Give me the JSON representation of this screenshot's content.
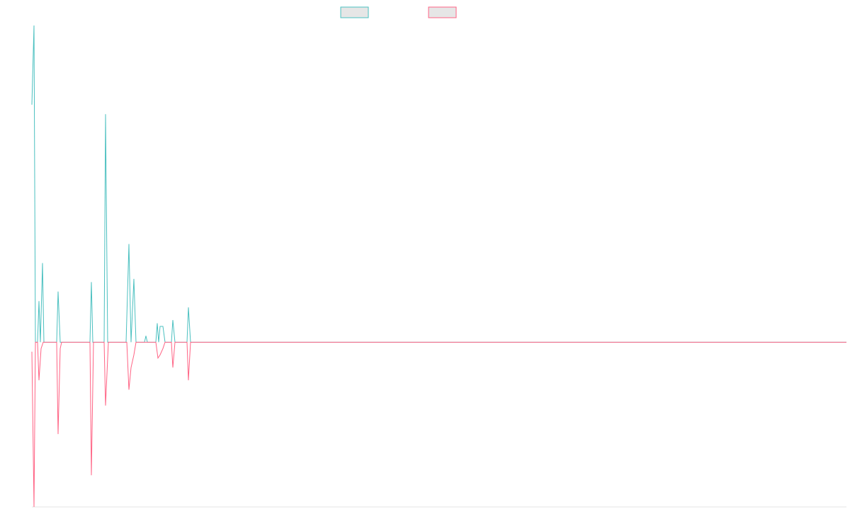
{
  "chart_data": {
    "type": "line",
    "xlim": [
      0,
      1150
    ],
    "ylim": [
      -0.52,
      1
    ],
    "series": [
      {
        "color": "#4bc0c0",
        "x": [
          0,
          3,
          5,
          8,
          10,
          12,
          15,
          17,
          35,
          37,
          40,
          82,
          84,
          86,
          102,
          104,
          107,
          133,
          137,
          140,
          144,
          147,
          159,
          161,
          163,
          175,
          177,
          179,
          181,
          185,
          188,
          197,
          199,
          202,
          219,
          221,
          224,
          1150
        ],
        "values": [
          0.75,
          1,
          0,
          0,
          0.13,
          0,
          0.25,
          0,
          0,
          0.16,
          0,
          0,
          0.19,
          0,
          0,
          0.72,
          0,
          0,
          0.31,
          0,
          0.2,
          0,
          0,
          0.02,
          0,
          0,
          0.06,
          0,
          0.05,
          0.05,
          0,
          0,
          0.07,
          0,
          0,
          0.11,
          0,
          0
        ]
      },
      {
        "color": "#ff6384",
        "x": [
          0,
          3,
          5,
          8,
          10,
          13,
          16,
          35,
          37,
          40,
          42,
          82,
          84,
          87,
          102,
          104,
          108,
          134,
          137,
          140,
          144,
          147,
          175,
          178,
          181,
          185,
          188,
          197,
          199,
          202,
          219,
          221,
          224,
          1150
        ],
        "values": [
          -0.03,
          -0.52,
          0,
          0,
          -0.12,
          -0.02,
          0,
          0,
          -0.29,
          -0.02,
          0,
          0,
          -0.42,
          0,
          0,
          -0.2,
          0,
          0,
          -0.15,
          -0.08,
          -0.04,
          0,
          0,
          -0.05,
          -0.04,
          -0.02,
          0,
          0,
          -0.08,
          0,
          0,
          -0.12,
          0,
          0
        ]
      }
    ]
  }
}
